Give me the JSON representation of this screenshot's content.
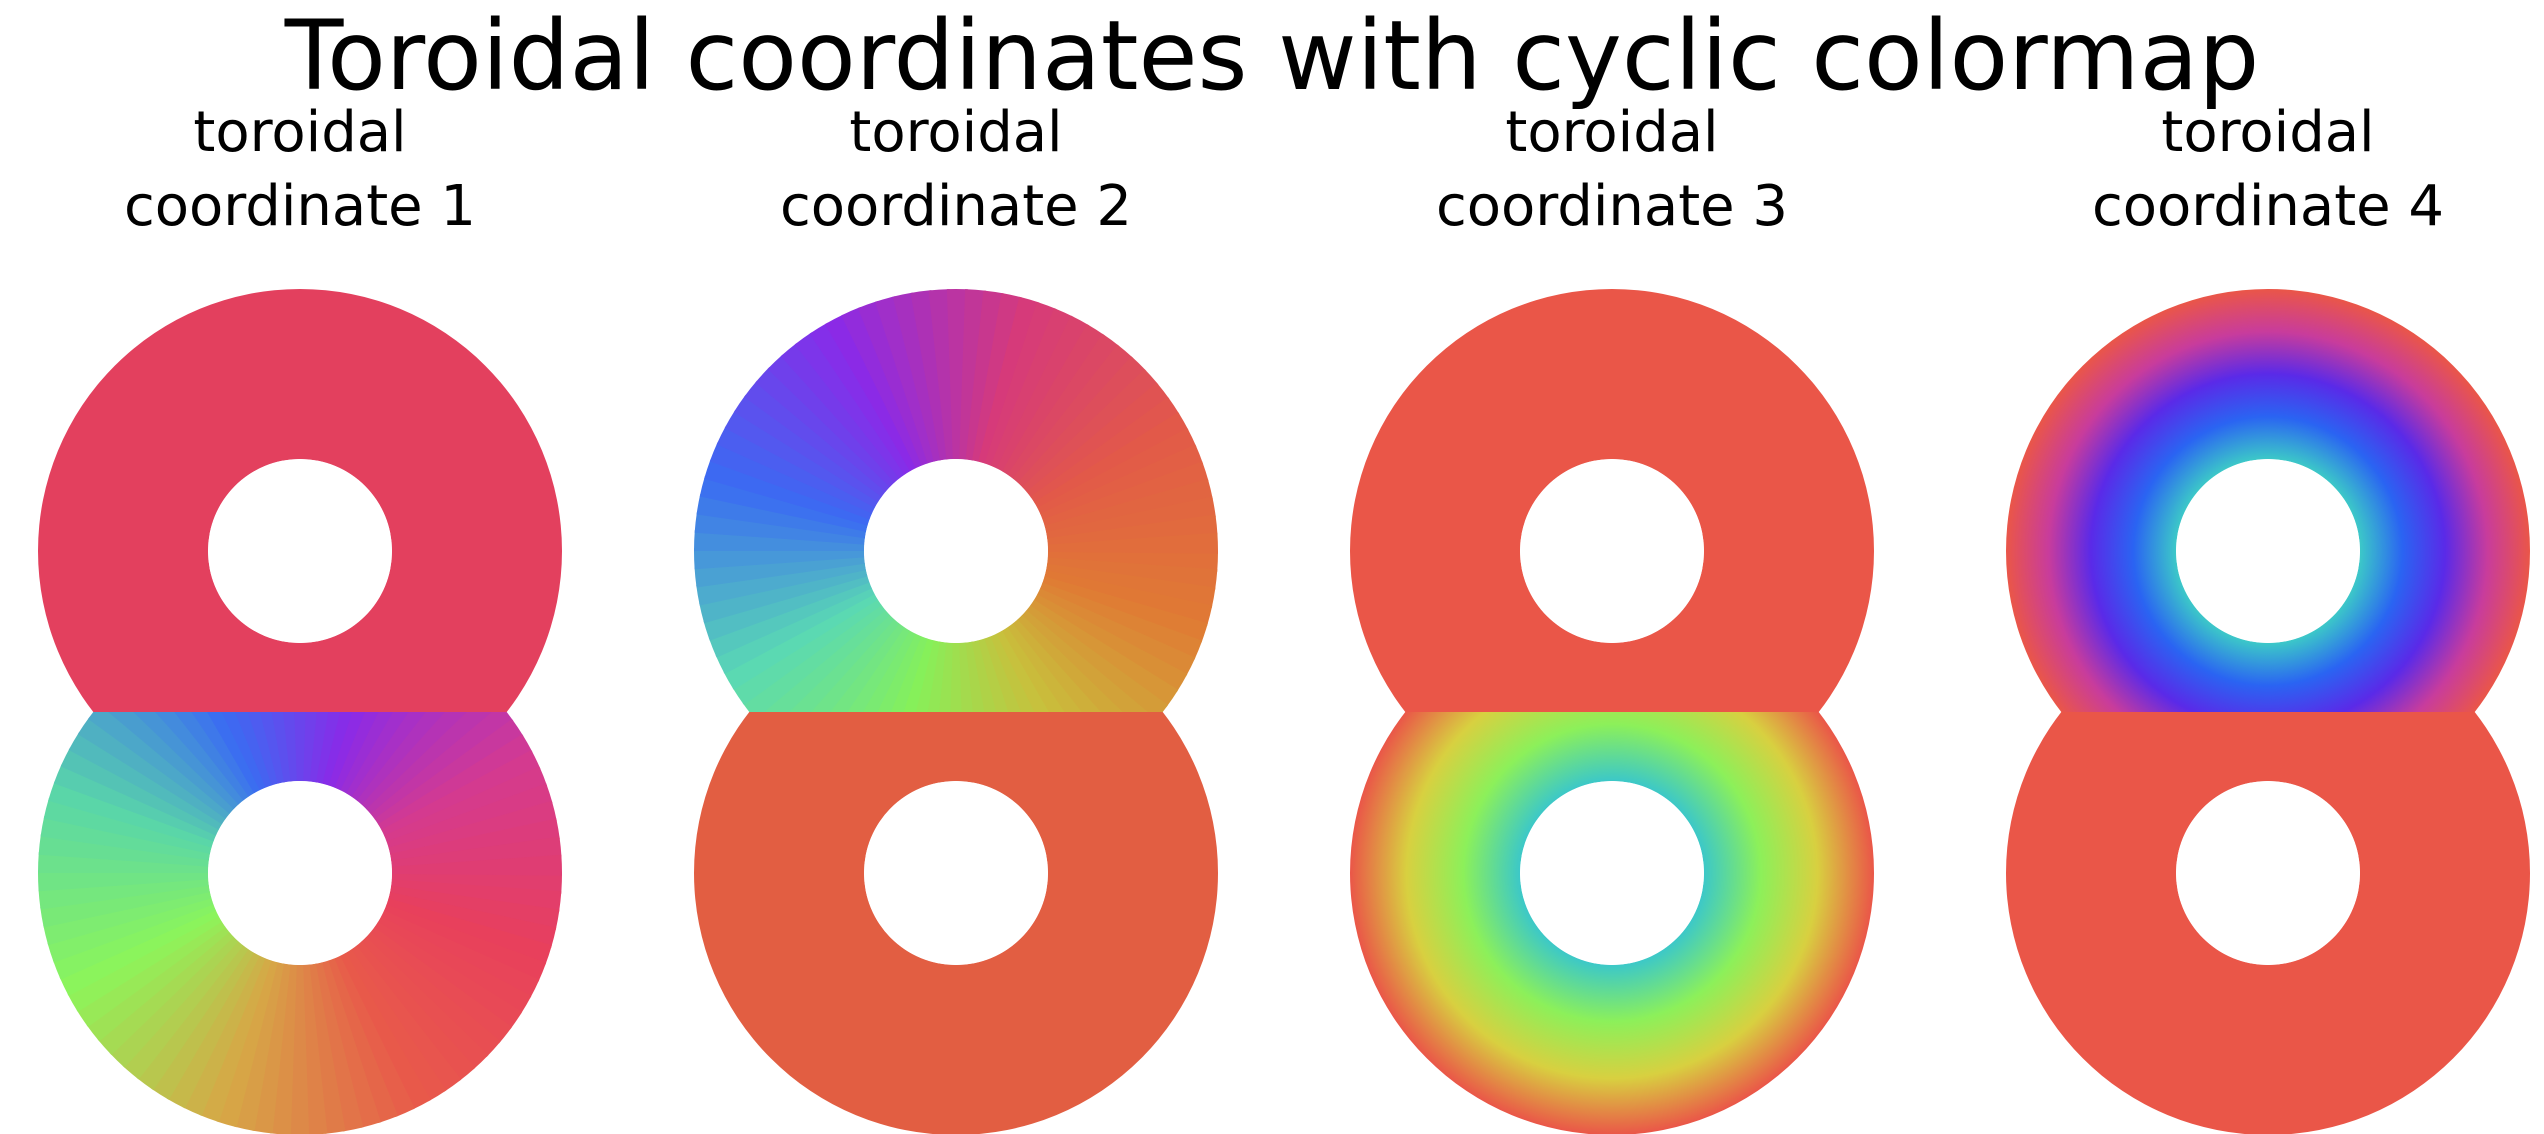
{
  "title": "Toroidal coordinates with cyclic colormap",
  "chart_data": {
    "type": "heatmap",
    "colormap": "cyclic hue (red → orange → yellow-green → green → cyan → blue → purple → magenta → red)",
    "shape": "figure-eight made of two stacked annuli (upper and lower ring)",
    "axes": "off",
    "grid": false,
    "panels": [
      {
        "title": "toroidal\ncoordinate 1",
        "description": "angle around the lower ring; upper ring red/pink, lower ring sweeps through full hue cycle",
        "palette": [
          "#e8405c",
          "#e85a4a",
          "#d6a846",
          "#8cf55a",
          "#5ad6a8",
          "#3a6cf2",
          "#8a2ae8",
          "#d43a90"
        ]
      },
      {
        "title": "toroidal\ncoordinate 2",
        "description": "angle around the upper ring; lower ring red/orange, upper ring sweeps through full hue cycle",
        "palette": [
          "#e25a48",
          "#e07a34",
          "#c8c03c",
          "#86f05a",
          "#5ad8b4",
          "#3a6cf2",
          "#8a2ae8",
          "#d63a7a"
        ]
      },
      {
        "title": "toroidal\ncoordinate 3",
        "description": "radial value in lower ring; red at outer edge to green/cyan at inner hole",
        "palette": [
          "#ea5648",
          "#d8d040",
          "#8cf05a",
          "#3cc8c8"
        ]
      },
      {
        "title": "toroidal\ncoordinate 4",
        "description": "radial value in upper ring; red at outer edge through magenta/purple to cyan at inner hole",
        "palette": [
          "#ea5648",
          "#c83c9c",
          "#5a2ae8",
          "#2a64f2",
          "#3cc8c8"
        ]
      }
    ]
  }
}
